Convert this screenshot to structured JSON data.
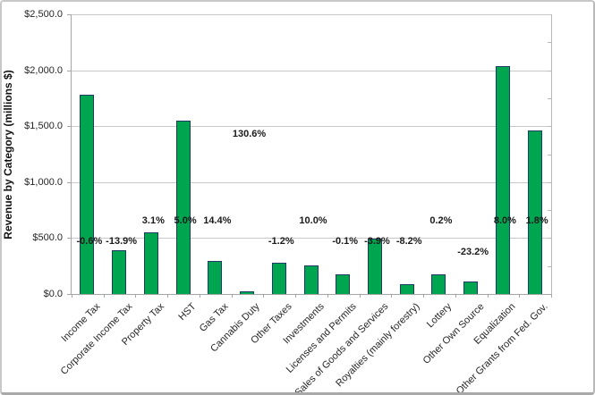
{
  "colors": {
    "bar_fill": "#00a550",
    "bar_border": "#1f3a63",
    "gridline": "#c9c9c9",
    "axis_line": "#a6a6a6",
    "frame_border": "#c8c8c8",
    "label_text": "#1a1a1a"
  },
  "chart_data": {
    "type": "bar",
    "title": "",
    "xlabel": "",
    "ylabel": "Revenue by Category (millions $)",
    "ylim": [
      0,
      2500
    ],
    "ytick_interval": 500,
    "minor_tick_interval": 250,
    "grid": true,
    "legend": "none",
    "yticks": [
      {
        "v": 0,
        "label": "$0.0"
      },
      {
        "v": 500,
        "label": "$500.0"
      },
      {
        "v": 1000,
        "label": "$1,000.0"
      },
      {
        "v": 1500,
        "label": "$1,500.0"
      },
      {
        "v": 2000,
        "label": "$2,000.0"
      },
      {
        "v": 2500,
        "label": "$2,500.0"
      }
    ],
    "categories": [
      "Income Tax",
      "Corporate Income Tax",
      "Property Tax",
      "HST",
      "Gas Tax",
      "Cannabis Duty",
      "Other Taxes",
      "Investments",
      "Licenses and Permits",
      "Sales of Goods and Services",
      "Royalties (mainly forestry)",
      "Lottery",
      "Other Own Source",
      "Equalization",
      "Other Grants from Fed. Gov."
    ],
    "series": [
      {
        "name": "Revenue by Category (millions $)",
        "values": [
          1775,
          385,
          545,
          1545,
          285,
          15,
          270,
          245,
          170,
          485,
          78,
          170,
          100,
          2025,
          1455
        ]
      }
    ],
    "pct_labels": [
      "-0.6%",
      "-13.9%",
      "3.1%",
      "5.0%",
      "14.4%",
      "130.6%",
      "-1.2%",
      "10.0%",
      "-0.1%",
      "-3.9%",
      "-8.2%",
      "0.2%",
      "-23.2%",
      "8.0%",
      "1.8%"
    ],
    "pct_label_levels": [
      470,
      470,
      655,
      655,
      655,
      1430,
      470,
      655,
      470,
      470,
      470,
      655,
      375,
      655,
      655
    ]
  }
}
